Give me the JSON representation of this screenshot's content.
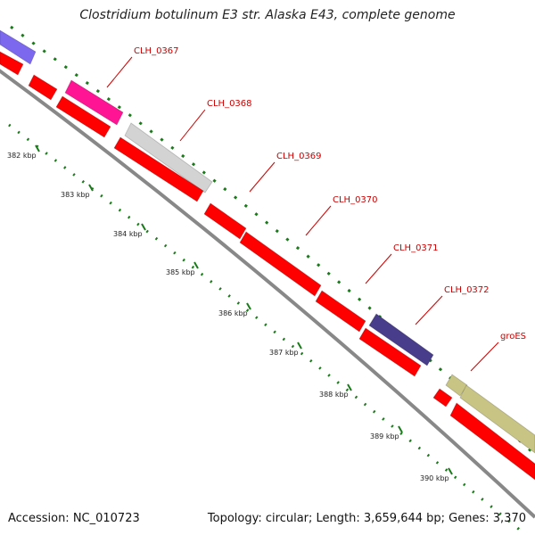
{
  "title": "Clostridium botulinum E3 str. Alaska E43, complete genome",
  "footer": {
    "accession": "Accession: NC_010723",
    "summary": "Topology: circular; Length: 3,659,644 bp; Genes: 3,370"
  },
  "colors": {
    "cds": "#ff0000",
    "backbone": "#888888",
    "tick": "#1a7a1a",
    "pink": "#ff1493",
    "gray": "#d3d3d3",
    "navy": "#483d8b",
    "purple": "#7b68ee",
    "olive": "#c8c483",
    "label": "#cc0000"
  },
  "gene_labels": [
    {
      "name": "CLH_0367"
    },
    {
      "name": "CLH_0368"
    },
    {
      "name": "CLH_0369"
    },
    {
      "name": "CLH_0370"
    },
    {
      "name": "CLH_0371"
    },
    {
      "name": "CLH_0372"
    },
    {
      "name": "groES"
    }
  ],
  "tick_labels": [
    "382 kbp",
    "383 kbp",
    "384 kbp",
    "385 kbp",
    "386 kbp",
    "387 kbp",
    "388 kbp",
    "389 kbp",
    "390 kbp"
  ]
}
